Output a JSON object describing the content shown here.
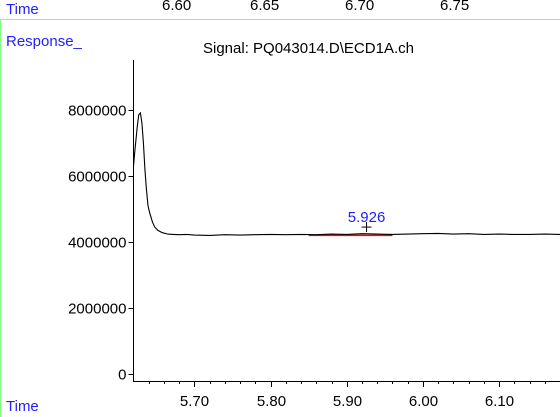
{
  "top_axis": {
    "label": "Time",
    "ticks": [
      "6.60",
      "6.65",
      "6.70",
      "6.75"
    ]
  },
  "colors": {
    "label_blue": "#1f1fff",
    "divider_green": "#7fff7f",
    "trace": "#000000",
    "baseline_marker": "#ff0000",
    "peak_label": "#2020ff"
  },
  "chart_data": {
    "type": "line",
    "title": "Signal: PQ043014.D\\ECD1A.ch",
    "ylabel": "Response_",
    "xlabel": "Time",
    "xlim": [
      5.62,
      6.18
    ],
    "ylim": [
      -200000,
      9500000
    ],
    "x_ticks": [
      5.7,
      5.8,
      5.9,
      6.0,
      6.1
    ],
    "x_tick_labels": [
      "5.70",
      "5.80",
      "5.90",
      "6.00",
      "6.10"
    ],
    "y_ticks": [
      0,
      2000000,
      4000000,
      6000000,
      8000000
    ],
    "y_tick_labels": [
      "0",
      "2000000",
      "4000000",
      "6000000",
      "8000000"
    ],
    "grid": false,
    "series": [
      {
        "x": [
          5.62,
          5.622,
          5.625,
          5.627,
          5.629,
          5.631,
          5.633,
          5.635,
          5.637,
          5.639,
          5.641,
          5.643,
          5.645,
          5.648,
          5.652,
          5.658,
          5.665,
          5.672,
          5.68,
          5.69,
          5.7,
          5.72,
          5.74,
          5.76,
          5.78,
          5.8,
          5.82,
          5.84,
          5.86,
          5.88,
          5.9,
          5.92,
          5.94,
          5.96,
          5.98,
          6.0,
          6.02,
          6.04,
          6.06,
          6.08,
          6.1,
          6.12,
          6.14,
          6.16,
          6.18
        ],
        "y": [
          6300000,
          6800000,
          7500000,
          7850000,
          7900000,
          7600000,
          7000000,
          6200000,
          5600000,
          5100000,
          4900000,
          4750000,
          4600000,
          4450000,
          4350000,
          4280000,
          4240000,
          4230000,
          4220000,
          4230000,
          4210000,
          4200000,
          4220000,
          4210000,
          4220000,
          4230000,
          4220000,
          4230000,
          4220000,
          4240000,
          4230000,
          4250000,
          4240000,
          4230000,
          4240000,
          4250000,
          4260000,
          4240000,
          4250000,
          4230000,
          4240000,
          4230000,
          4230000,
          4240000,
          4230000
        ]
      }
    ],
    "annotations": [
      {
        "text": "5.926",
        "x": 5.926,
        "y": 4240000
      }
    ],
    "baseline_segment": {
      "x_start": 5.85,
      "x_end": 5.96,
      "y": 4200000
    }
  }
}
